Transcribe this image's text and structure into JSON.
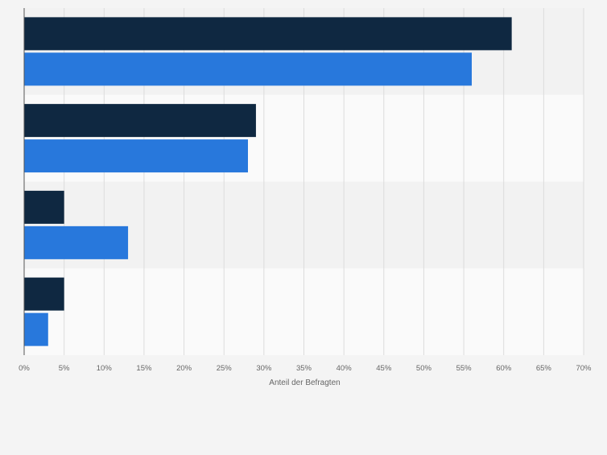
{
  "chart_data": {
    "type": "bar",
    "orientation": "horizontal",
    "categories": [
      "",
      "",
      "",
      ""
    ],
    "series": [
      {
        "color": "#0f2841",
        "values": [
          61,
          29,
          5,
          5
        ]
      },
      {
        "color": "#2878dc",
        "values": [
          56,
          28,
          13,
          3
        ]
      }
    ],
    "xlabel": "Anteil der Befragten",
    "xlim": [
      0,
      70
    ],
    "xticks": [
      0,
      5,
      10,
      15,
      20,
      25,
      30,
      35,
      40,
      45,
      50,
      55,
      60,
      65,
      70
    ],
    "tick_suffix": "%",
    "grid": true,
    "legend": "none"
  }
}
